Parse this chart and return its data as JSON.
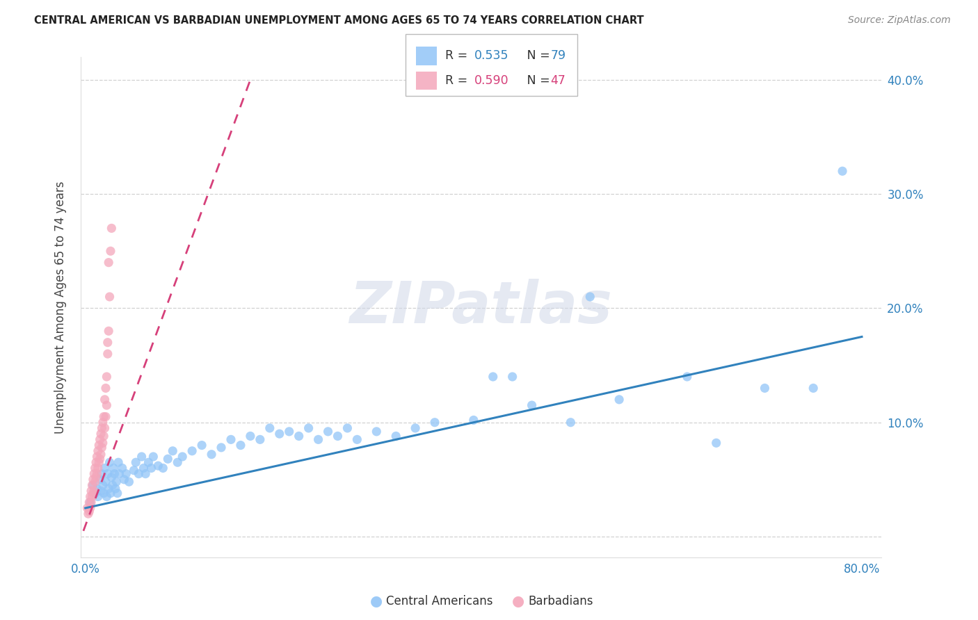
{
  "title": "CENTRAL AMERICAN VS BARBADIAN UNEMPLOYMENT AMONG AGES 65 TO 74 YEARS CORRELATION CHART",
  "source": "Source: ZipAtlas.com",
  "ylabel": "Unemployment Among Ages 65 to 74 years",
  "xlim": [
    -0.005,
    0.82
  ],
  "ylim": [
    -0.018,
    0.42
  ],
  "xtick_positions": [
    0.0,
    0.1,
    0.2,
    0.3,
    0.4,
    0.5,
    0.6,
    0.7,
    0.8
  ],
  "xticklabels": [
    "0.0%",
    "",
    "",
    "",
    "",
    "",
    "",
    "",
    "80.0%"
  ],
  "ytick_positions": [
    0.0,
    0.1,
    0.2,
    0.3,
    0.4
  ],
  "yticklabels": [
    "",
    "10.0%",
    "20.0%",
    "30.0%",
    "40.0%"
  ],
  "blue_color": "#92c5f7",
  "pink_color": "#f4a7bb",
  "blue_line_color": "#3182bd",
  "pink_line_color": "#d6407a",
  "tick_color": "#3182bd",
  "watermark_text": "ZIPatlas",
  "blue_trend_x": [
    0.0,
    0.8
  ],
  "blue_trend_y": [
    0.025,
    0.175
  ],
  "pink_trend_x": [
    -0.002,
    0.17
  ],
  "pink_trend_y": [
    0.005,
    0.4
  ],
  "blue_scatter_x": [
    0.005,
    0.008,
    0.01,
    0.012,
    0.013,
    0.015,
    0.016,
    0.017,
    0.018,
    0.019,
    0.02,
    0.021,
    0.022,
    0.023,
    0.024,
    0.025,
    0.026,
    0.027,
    0.028,
    0.029,
    0.03,
    0.031,
    0.032,
    0.033,
    0.034,
    0.035,
    0.038,
    0.04,
    0.042,
    0.045,
    0.05,
    0.052,
    0.055,
    0.058,
    0.06,
    0.062,
    0.065,
    0.068,
    0.07,
    0.075,
    0.08,
    0.085,
    0.09,
    0.095,
    0.1,
    0.11,
    0.12,
    0.13,
    0.14,
    0.15,
    0.16,
    0.17,
    0.18,
    0.19,
    0.2,
    0.21,
    0.22,
    0.23,
    0.24,
    0.25,
    0.26,
    0.27,
    0.28,
    0.3,
    0.32,
    0.34,
    0.36,
    0.4,
    0.42,
    0.44,
    0.46,
    0.5,
    0.52,
    0.55,
    0.62,
    0.65,
    0.7,
    0.75,
    0.78
  ],
  "blue_scatter_y": [
    0.03,
    0.045,
    0.038,
    0.042,
    0.035,
    0.05,
    0.04,
    0.055,
    0.045,
    0.038,
    0.06,
    0.048,
    0.035,
    0.055,
    0.042,
    0.065,
    0.038,
    0.052,
    0.045,
    0.06,
    0.055,
    0.042,
    0.048,
    0.038,
    0.065,
    0.055,
    0.06,
    0.05,
    0.055,
    0.048,
    0.058,
    0.065,
    0.055,
    0.07,
    0.06,
    0.055,
    0.065,
    0.06,
    0.07,
    0.062,
    0.06,
    0.068,
    0.075,
    0.065,
    0.07,
    0.075,
    0.08,
    0.072,
    0.078,
    0.085,
    0.08,
    0.088,
    0.085,
    0.095,
    0.09,
    0.092,
    0.088,
    0.095,
    0.085,
    0.092,
    0.088,
    0.095,
    0.085,
    0.092,
    0.088,
    0.095,
    0.1,
    0.102,
    0.14,
    0.14,
    0.115,
    0.1,
    0.21,
    0.12,
    0.14,
    0.082,
    0.13,
    0.13,
    0.32
  ],
  "pink_scatter_x": [
    0.002,
    0.003,
    0.004,
    0.004,
    0.005,
    0.005,
    0.006,
    0.006,
    0.007,
    0.007,
    0.008,
    0.008,
    0.009,
    0.009,
    0.01,
    0.01,
    0.011,
    0.011,
    0.012,
    0.012,
    0.013,
    0.013,
    0.014,
    0.014,
    0.015,
    0.015,
    0.016,
    0.016,
    0.017,
    0.017,
    0.018,
    0.018,
    0.019,
    0.019,
    0.02,
    0.02,
    0.021,
    0.021,
    0.022,
    0.022,
    0.023,
    0.023,
    0.024,
    0.024,
    0.025,
    0.026,
    0.027
  ],
  "pink_scatter_y": [
    0.025,
    0.02,
    0.03,
    0.022,
    0.035,
    0.025,
    0.04,
    0.03,
    0.045,
    0.035,
    0.05,
    0.038,
    0.055,
    0.04,
    0.06,
    0.048,
    0.065,
    0.052,
    0.07,
    0.055,
    0.075,
    0.06,
    0.08,
    0.065,
    0.085,
    0.068,
    0.09,
    0.072,
    0.095,
    0.078,
    0.1,
    0.082,
    0.105,
    0.088,
    0.12,
    0.095,
    0.13,
    0.105,
    0.14,
    0.115,
    0.16,
    0.17,
    0.18,
    0.24,
    0.21,
    0.25,
    0.27
  ]
}
